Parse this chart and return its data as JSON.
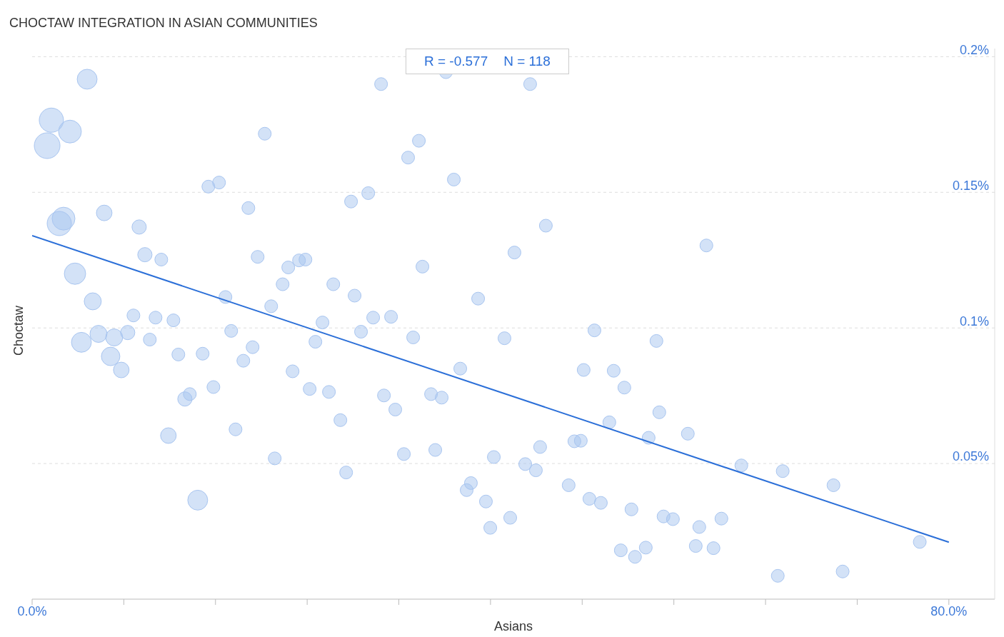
{
  "chart_data": {
    "type": "bubble",
    "title": "CHOCTAW INTEGRATION IN ASIAN COMMUNITIES",
    "xlabel": "Asians",
    "ylabel": "Choctaw",
    "annotations": [
      "R = -0.577",
      "N = 118"
    ],
    "xlim": [
      0,
      84
    ],
    "xticks": [
      {
        "value": 0,
        "label": "0.0%"
      },
      {
        "value": 8,
        "label": null
      },
      {
        "value": 16,
        "label": null
      },
      {
        "value": 24,
        "label": null
      },
      {
        "value": 32,
        "label": null
      },
      {
        "value": 40,
        "label": null
      },
      {
        "value": 48,
        "label": null
      },
      {
        "value": 56,
        "label": null
      },
      {
        "value": 64,
        "label": null
      },
      {
        "value": 72,
        "label": null
      },
      {
        "value": 80,
        "label": "80.0%"
      }
    ],
    "ylim": [
      0,
      0.203
    ],
    "yticks": [
      {
        "value": 0.05,
        "label": "0.05%"
      },
      {
        "value": 0.1,
        "label": "0.1%"
      },
      {
        "value": 0.15,
        "label": "0.15%"
      },
      {
        "value": 0.2,
        "label": "0.2%"
      }
    ],
    "grid": "y",
    "legend": false,
    "series": [
      {
        "type": "bubble",
        "color": "#a8c5f0",
        "x": [
          4.8,
          1.68,
          1.31,
          3.3,
          2.74,
          2.37,
          6.29,
          3.74,
          5.29,
          4.3,
          5.79,
          7.16,
          6.85,
          7.78,
          8.34,
          8.84,
          9.34,
          9.84,
          11.27,
          10.27,
          10.77,
          12.33,
          12.76,
          11.89,
          13.33,
          13.76,
          14.45,
          14.88,
          15.38,
          16.31,
          15.82,
          16.87,
          17.37,
          17.75,
          18.43,
          18.87,
          19.24,
          19.68,
          20.3,
          20.86,
          21.17,
          21.86,
          22.35,
          22.73,
          23.29,
          23.85,
          24.22,
          24.72,
          25.34,
          25.9,
          26.28,
          26.9,
          27.4,
          27.83,
          28.14,
          28.7,
          29.33,
          29.76,
          30.45,
          30.7,
          31.32,
          31.69,
          32.44,
          32.81,
          33.25,
          33.75,
          34.06,
          34.81,
          35.18,
          35.74,
          36.11,
          36.8,
          37.36,
          37.92,
          38.29,
          38.92,
          39.6,
          39.98,
          40.29,
          41.22,
          41.72,
          42.09,
          43.03,
          43.46,
          43.96,
          44.33,
          44.83,
          46.82,
          47.32,
          47.88,
          48.13,
          48.63,
          49.07,
          49.63,
          50.37,
          50.75,
          51.37,
          51.68,
          52.3,
          52.61,
          53.55,
          53.8,
          54.48,
          54.73,
          55.1,
          55.92,
          57.22,
          57.91,
          58.22,
          58.84,
          59.46,
          60.15,
          61.89,
          65.07,
          65.5,
          69.93,
          70.73,
          77.46
        ],
        "values": [
          0.1917,
          0.1766,
          0.1672,
          0.1724,
          0.1403,
          0.1385,
          0.1424,
          0.12,
          0.1098,
          0.0947,
          0.0978,
          0.0965,
          0.0895,
          0.0845,
          0.0983,
          0.1046,
          0.1372,
          0.127,
          0.1252,
          0.0957,
          0.1038,
          0.1028,
          0.0902,
          0.0603,
          0.0738,
          0.0756,
          0.0365,
          0.0905,
          0.1521,
          0.1536,
          0.0782,
          0.1114,
          0.0989,
          0.0626,
          0.0879,
          0.1442,
          0.0929,
          0.1262,
          0.1716,
          0.108,
          0.0519,
          0.1161,
          0.1223,
          0.084,
          0.1249,
          0.1252,
          0.0775,
          0.0949,
          0.102,
          0.0764,
          0.1161,
          0.066,
          0.0467,
          0.1466,
          0.1119,
          0.0986,
          0.1497,
          0.1038,
          0.1899,
          0.0751,
          0.1041,
          0.0699,
          0.0535,
          0.1628,
          0.0965,
          0.169,
          0.1226,
          0.0756,
          0.055,
          0.0743,
          0.1943,
          0.1547,
          0.085,
          0.0402,
          0.0428,
          0.1108,
          0.036,
          0.0263,
          0.0524,
          0.0962,
          0.03,
          0.1278,
          0.0498,
          0.1899,
          0.0475,
          0.0561,
          0.1377,
          0.042,
          0.0582,
          0.0584,
          0.0845,
          0.037,
          0.0991,
          0.0355,
          0.0652,
          0.0842,
          0.018,
          0.078,
          0.0331,
          0.0156,
          0.019,
          0.0595,
          0.0952,
          0.0689,
          0.0305,
          0.0295,
          0.061,
          0.0196,
          0.0266,
          0.1304,
          0.0188,
          0.0297,
          0.0493,
          0.0086,
          0.0472,
          0.042,
          0.0102,
          0.0211
        ],
        "sizes": [
          0.6,
          0.89,
          1,
          0.79,
          0.79,
          0.89,
          0.37,
          0.69,
          0.44,
          0.6,
          0.44,
          0.44,
          0.52,
          0.37,
          0.31,
          0.25,
          0.31,
          0.31,
          0.25,
          0.25,
          0.25,
          0.25,
          0.25,
          0.37,
          0.31,
          0.25,
          0.6,
          0.25,
          0.25,
          0.25,
          0.25,
          0.25,
          0.25,
          0.25,
          0.25,
          0.25,
          0.25,
          0.25,
          0.25,
          0.25,
          0.25,
          0.25,
          0.25,
          0.25,
          0.25,
          0.25,
          0.25,
          0.25,
          0.25,
          0.25,
          0.25,
          0.25,
          0.25,
          0.25,
          0.25,
          0.25,
          0.25,
          0.25,
          0.25,
          0.25,
          0.25,
          0.25,
          0.25,
          0.25,
          0.25,
          0.25,
          0.25,
          0.25,
          0.25,
          0.25,
          0.25,
          0.25,
          0.25,
          0.25,
          0.25,
          0.25,
          0.25,
          0.25,
          0.25,
          0.25,
          0.25,
          0.25,
          0.25,
          0.25,
          0.25,
          0.25,
          0.25,
          0.25,
          0.25,
          0.25,
          0.25,
          0.25,
          0.25,
          0.25,
          0.25,
          0.25,
          0.25,
          0.25,
          0.25,
          0.25,
          0.25,
          0.25,
          0.25,
          0.25,
          0.25,
          0.25,
          0.25,
          0.25,
          0.25,
          0.25,
          0.25,
          0.25,
          0.25,
          0.25,
          0.25,
          0.25,
          0.25,
          0.25
        ]
      },
      {
        "type": "line",
        "color": "#2b6fd8",
        "x": [
          0,
          80
        ],
        "values": [
          0.134,
          0.021
        ]
      }
    ]
  }
}
